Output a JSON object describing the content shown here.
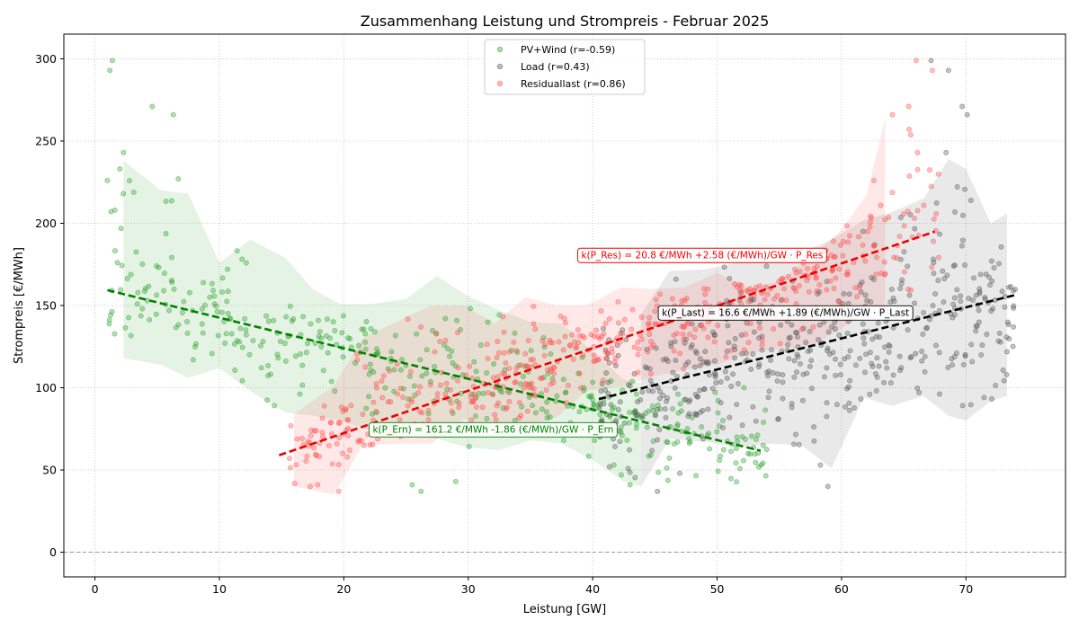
{
  "chart_data": {
    "type": "scatter",
    "title": "Zusammenhang Leistung und Strompreis - Februar 2025",
    "xlabel": "Leistung [GW]",
    "ylabel": "Strompreis [€/MWh]",
    "xlim": [
      -2.5,
      78
    ],
    "ylim": [
      -15,
      315
    ],
    "xticks": [
      0,
      10,
      20,
      30,
      40,
      50,
      60,
      70
    ],
    "yticks": [
      0,
      50,
      100,
      150,
      200,
      250,
      300
    ],
    "grid": true,
    "legend_position": "top-center",
    "series": [
      {
        "name": "PV+Wind (r=-0.59)",
        "color": "#2ca02c",
        "line_color": "#008000",
        "range": [
          1,
          54
        ],
        "fit": {
          "intercept": 161.2,
          "slope": -1.86,
          "x_range": [
            1,
            53.5
          ],
          "label": "k(P_Ern) = 161.2 €/MWh -1.86 (€/MWh)/GW · P_Ern",
          "label_at": [
            32,
            75
          ]
        },
        "band": {
          "x": [
            2.3,
            5.3,
            7.5,
            10,
            12.5,
            15.3,
            17.5,
            19.7,
            22.2,
            25,
            27.5,
            29.7,
            32.5,
            35,
            37.5,
            40,
            42.5,
            43.9
          ],
          "upper": [
            238,
            220,
            218,
            176,
            190,
            179,
            160,
            151,
            151,
            154,
            168,
            157,
            147,
            140,
            139,
            122,
            105,
            103
          ],
          "lower": [
            118,
            114,
            106,
            112,
            98,
            85,
            83,
            80,
            74,
            72,
            69,
            64,
            62,
            68,
            66,
            56,
            43,
            40
          ]
        },
        "outliers": [
          [
            1,
            226
          ],
          [
            1.2,
            293
          ],
          [
            1.4,
            299
          ],
          [
            2.3,
            243
          ],
          [
            4.6,
            271
          ],
          [
            6.3,
            266
          ],
          [
            2,
            233
          ],
          [
            1.6,
            208
          ],
          [
            6.7,
            227
          ],
          [
            25.5,
            41
          ],
          [
            26.2,
            37
          ],
          [
            29,
            43
          ],
          [
            42.3,
            47
          ],
          [
            43,
            41
          ],
          [
            41.7,
            53
          ]
        ],
        "seed": 7,
        "n": 420
      },
      {
        "name": "Load (r=0.43)",
        "color": "#555555",
        "line_color": "#000000",
        "range": [
          40.5,
          74
        ],
        "fit": {
          "intercept": 16.6,
          "slope": 1.89,
          "x_range": [
            40.5,
            74
          ],
          "label": "k(P_Last) = 16.6 €/MWh +1.89 (€/MWh)/GW · P_Last",
          "label_at": [
            55.5,
            146
          ]
        },
        "band": {
          "x": [
            43.9,
            46.2,
            49.1,
            51.6,
            54.3,
            56.8,
            59.2,
            61.8,
            64.1,
            66.6,
            68.6,
            70,
            72,
            73.3
          ],
          "upper": [
            145,
            171,
            172,
            176,
            177,
            182,
            190,
            202,
            207,
            215,
            239,
            233,
            200,
            206
          ],
          "lower": [
            40,
            69,
            67,
            64,
            66,
            65,
            51,
            94,
            89,
            95,
            83,
            80,
            92,
            95
          ]
        },
        "outliers": [
          [
            67.2,
            299
          ],
          [
            68.6,
            293
          ],
          [
            69.7,
            271
          ],
          [
            70.1,
            266
          ],
          [
            68.4,
            243
          ],
          [
            45.2,
            37
          ],
          [
            47,
            48
          ],
          [
            58.3,
            53
          ],
          [
            58.9,
            40
          ]
        ],
        "seed": 23,
        "n": 480
      },
      {
        "name": "Residuallast (r=0.86)",
        "color": "#ff4d4d",
        "line_color": "#ee0000",
        "range": [
          15.5,
          68
        ],
        "fit": {
          "intercept": 20.8,
          "slope": 2.58,
          "x_range": [
            14.8,
            67.5
          ],
          "label": "k(P_Res) = 20.8 €/MWh +2.58 (€/MWh)/GW · P_Res",
          "label_at": [
            48.8,
            181
          ]
        },
        "band": {
          "x": [
            16,
            19.2,
            21.5,
            24.5,
            27,
            29.7,
            32.1,
            34.6,
            37.1,
            39.5,
            42.3,
            44.9,
            47.4,
            50,
            52.5,
            55,
            57.5,
            60,
            62,
            63.5
          ],
          "upper": [
            84,
            101,
            130,
            141,
            150,
            150,
            139,
            155,
            150,
            150,
            161,
            160,
            161,
            170,
            160,
            165,
            179,
            196,
            217,
            263
          ],
          "lower": [
            40,
            35,
            65,
            66,
            66,
            81,
            75,
            76,
            82,
            98,
            101,
            107,
            111,
            114,
            121,
            124,
            125,
            136,
            146,
            146
          ]
        },
        "outliers": [
          [
            66,
            299
          ],
          [
            67.3,
            293
          ],
          [
            65.4,
            271
          ],
          [
            64.1,
            266
          ],
          [
            66.1,
            243
          ],
          [
            62.6,
            226
          ],
          [
            17.9,
            41
          ],
          [
            19.6,
            37
          ],
          [
            17.3,
            40
          ]
        ],
        "seed": 101,
        "n": 520
      }
    ]
  }
}
